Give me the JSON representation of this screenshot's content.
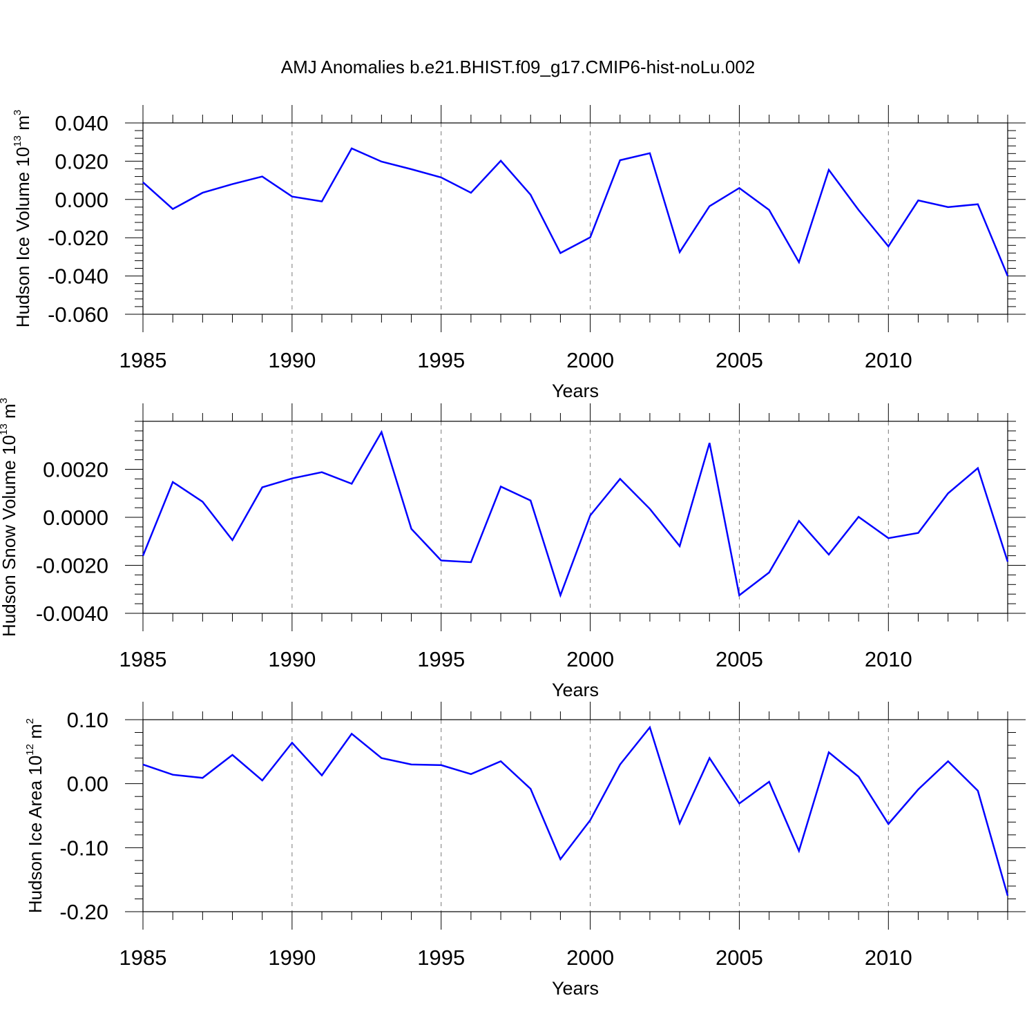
{
  "title": "AMJ Anomalies b.e21.BHIST.f09_g17.CMIP6-hist-noLu.002",
  "chart_data": [
    {
      "type": "line",
      "xlabel": "Years",
      "ylabel": {
        "text": "Hudson Ice Volume 10",
        "exp": "13",
        "unit": " m",
        "unit_exp": "3"
      },
      "xlim": [
        1985,
        2014
      ],
      "ylim": [
        -0.06,
        0.04
      ],
      "x_ticks": [
        "1985",
        "1990",
        "1995",
        "2000",
        "2005",
        "2010"
      ],
      "y_ticks": [
        {
          "value": 0.04,
          "label": "0.040"
        },
        {
          "value": 0.02,
          "label": "0.020"
        },
        {
          "value": 0.0,
          "label": "0.000"
        },
        {
          "value": -0.02,
          "label": "-0.020"
        },
        {
          "value": -0.04,
          "label": "-0.040"
        },
        {
          "value": -0.06,
          "label": "-0.060"
        }
      ],
      "grid": "vertical dashed at major x ticks",
      "series": [
        {
          "color": "#0000ff",
          "x": [
            1985,
            1986,
            1987,
            1988,
            1989,
            1990,
            1991,
            1992,
            1993,
            1994,
            1995,
            1996,
            1997,
            1998,
            1999,
            2000,
            2001,
            2002,
            2003,
            2004,
            2005,
            2006,
            2007,
            2008,
            2009,
            2010,
            2011,
            2012,
            2013,
            2014
          ],
          "values": [
            0.009,
            -0.005,
            0.0035,
            0.008,
            0.012,
            0.0015,
            -0.001,
            0.0267,
            0.0198,
            0.0158,
            0.0115,
            0.0035,
            0.0202,
            0.0025,
            -0.028,
            -0.0198,
            0.0205,
            0.0242,
            -0.0275,
            -0.0035,
            0.006,
            -0.0055,
            -0.0328,
            0.0155,
            -0.0055,
            -0.0245,
            -0.0005,
            -0.004,
            -0.0025,
            -0.04
          ]
        }
      ]
    },
    {
      "type": "line",
      "xlabel": "Years",
      "ylabel": {
        "text": "Hudson Snow Volume 10",
        "exp": "13",
        "unit": " m",
        "unit_exp": "3"
      },
      "xlim": [
        1985,
        2014
      ],
      "ylim": [
        -0.004,
        0.004
      ],
      "x_ticks": [
        "1985",
        "1990",
        "1995",
        "2000",
        "2005",
        "2010"
      ],
      "y_ticks": [
        {
          "value": 0.002,
          "label": "0.0020"
        },
        {
          "value": 0.0,
          "label": "0.0000"
        },
        {
          "value": -0.002,
          "label": "-0.0020"
        },
        {
          "value": -0.004,
          "label": "-0.0040"
        }
      ],
      "grid": "vertical dashed at major x ticks",
      "series": [
        {
          "color": "#0000ff",
          "x": [
            1985,
            1986,
            1987,
            1988,
            1989,
            1990,
            1991,
            1992,
            1993,
            1994,
            1995,
            1996,
            1997,
            1998,
            1999,
            2000,
            2001,
            2002,
            2003,
            2004,
            2005,
            2006,
            2007,
            2008,
            2009,
            2010,
            2011,
            2012,
            2013,
            2014
          ],
          "values": [
            -0.0016,
            0.00147,
            0.00065,
            -0.00095,
            0.00125,
            0.00162,
            0.00188,
            0.0014,
            0.00355,
            -0.00048,
            -0.0018,
            -0.00187,
            0.00128,
            0.0007,
            -0.00325,
            8e-05,
            0.0016,
            0.00035,
            -0.0012,
            0.0031,
            -0.00325,
            -0.0023,
            -0.00015,
            -0.00155,
            2e-05,
            -0.00087,
            -0.00065,
            0.001,
            0.00205,
            -0.00185
          ]
        }
      ]
    },
    {
      "type": "line",
      "xlabel": "Years",
      "ylabel": {
        "text": "Hudson Ice Area 10",
        "exp": "12",
        "unit": " m",
        "unit_exp": "2"
      },
      "xlim": [
        1985,
        2014
      ],
      "ylim": [
        -0.2,
        0.1
      ],
      "x_ticks": [
        "1985",
        "1990",
        "1995",
        "2000",
        "2005",
        "2010"
      ],
      "y_ticks": [
        {
          "value": 0.1,
          "label": "0.10"
        },
        {
          "value": 0.0,
          "label": "0.00"
        },
        {
          "value": -0.1,
          "label": "-0.10"
        },
        {
          "value": -0.2,
          "label": "-0.20"
        }
      ],
      "grid": "vertical dashed at major x ticks",
      "series": [
        {
          "color": "#0000ff",
          "x": [
            1985,
            1986,
            1987,
            1988,
            1989,
            1990,
            1991,
            1992,
            1993,
            1994,
            1995,
            1996,
            1997,
            1998,
            1999,
            2000,
            2001,
            2002,
            2003,
            2004,
            2005,
            2006,
            2007,
            2008,
            2009,
            2010,
            2011,
            2012,
            2013,
            2014
          ],
          "values": [
            0.03,
            0.014,
            0.009,
            0.045,
            0.005,
            0.064,
            0.013,
            0.078,
            0.04,
            0.03,
            0.029,
            0.015,
            0.035,
            -0.008,
            -0.118,
            -0.057,
            0.03,
            0.088,
            -0.062,
            0.04,
            -0.031,
            0.003,
            -0.105,
            0.049,
            0.011,
            -0.063,
            -0.009,
            0.035,
            -0.011,
            -0.175
          ]
        }
      ]
    }
  ]
}
